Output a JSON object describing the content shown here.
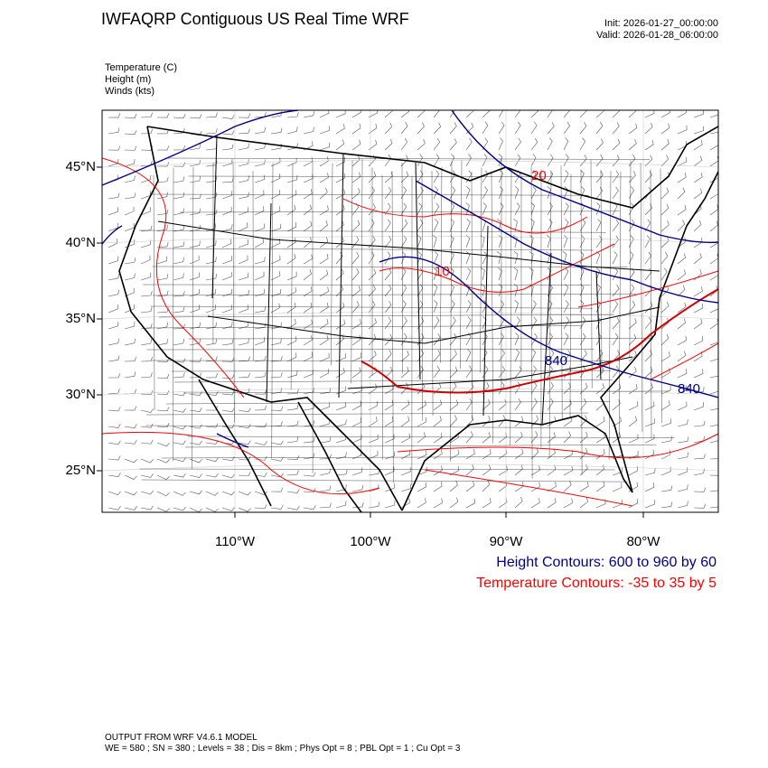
{
  "header": {
    "title": "IWFAQRP Contiguous US Real Time WRF",
    "init": "Init: 2026-01-27_00:00:00",
    "valid": "Valid: 2026-01-28_06:00:00"
  },
  "variables": [
    "Temperature   (C)",
    "Height   (m)",
    "Winds   (kts)"
  ],
  "map": {
    "lat_labels": [
      "45°N",
      "40°N",
      "35°N",
      "30°N",
      "25°N"
    ],
    "lon_labels": [
      "110°W",
      "100°W",
      "90°W",
      "80°W"
    ],
    "contour_labels": {
      "temp": [
        "20",
        "10"
      ],
      "height": [
        "840",
        "840"
      ]
    },
    "colors": {
      "temperature": "#ff0000",
      "height": "#00008b",
      "borders": "#000000",
      "wind_barbs": "#555555"
    }
  },
  "legend": {
    "height_contours": "Height Contours: 600 to 960 by 60",
    "temperature_contours": "Temperature Contours: -35 to 35 by 5"
  },
  "footer": {
    "line1": "OUTPUT FROM WRF V4.6.1 MODEL",
    "line2": "WE = 580 ; SN = 380 ; Levels = 38 ; Dis = 8km ; Phys Opt = 8 ; PBL Opt = 1 ; Cu Opt = 3"
  }
}
